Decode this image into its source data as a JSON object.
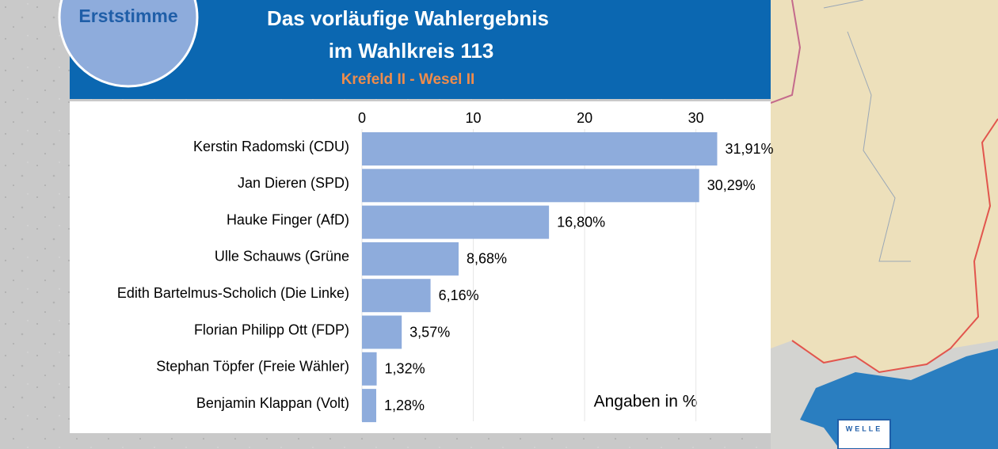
{
  "chart_data": {
    "type": "bar",
    "orientation": "horizontal",
    "badge": "Erststimme",
    "title": "Das vorläufige Wahlergebnis",
    "title_line2": "im Wahlkreis 113",
    "subtitle": "Krefeld II - Wesel II",
    "annotation": "Angaben in %",
    "categories": [
      "Kerstin Radomski (CDU)",
      "Jan Dieren (SPD)",
      "Hauke Finger (AfD)",
      "Ulle Schauws (Grüne",
      "Edith Bartelmus-Scholich (Die Linke)",
      "Florian Philipp Ott (FDP)",
      "Stephan Töpfer (Freie Wähler)",
      "Benjamin Klappan (Volt)"
    ],
    "values": [
      31.91,
      30.29,
      16.8,
      8.68,
      6.16,
      3.57,
      1.32,
      1.28
    ],
    "value_labels": [
      "31,91%",
      "30,29%",
      "16,80%",
      "8,68%",
      "6,16%",
      "3,57%",
      "1,32%",
      "1,28%"
    ],
    "color": "#8eacdc",
    "xlim": [
      0,
      36.5
    ],
    "xticks": [
      0,
      10,
      20,
      30
    ],
    "grid": true,
    "logo": "WELLE"
  }
}
